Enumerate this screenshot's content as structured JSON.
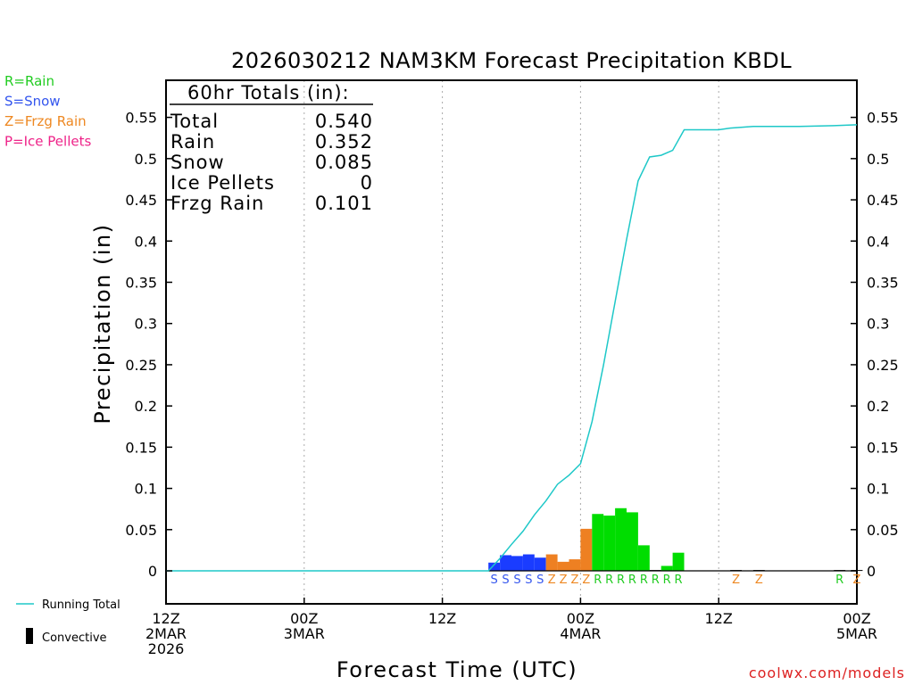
{
  "chart_data": {
    "type": "bar",
    "title": "2026030212 NAM3KM Forecast Precipitation KBDL",
    "xlabel": "Forecast Time (UTC)",
    "ylabel": "Precipitation (in)",
    "ylim": [
      -0.04,
      0.595
    ],
    "xlim_hours": [
      0,
      60
    ],
    "yticks": [
      "0",
      "0.05",
      "0.1",
      "0.15",
      "0.2",
      "0.25",
      "0.3",
      "0.35",
      "0.4",
      "0.45",
      "0.5",
      "0.55"
    ],
    "ytick_values": [
      0,
      0.05,
      0.1,
      0.15,
      0.2,
      0.25,
      0.3,
      0.35,
      0.4,
      0.45,
      0.5,
      0.55
    ],
    "xticks": [
      {
        "hour": 0,
        "lines": [
          "12Z",
          "2MAR",
          "2026"
        ]
      },
      {
        "hour": 12,
        "lines": [
          "00Z",
          "3MAR"
        ]
      },
      {
        "hour": 24,
        "lines": [
          "12Z"
        ]
      },
      {
        "hour": 36,
        "lines": [
          "00Z",
          "4MAR"
        ]
      },
      {
        "hour": 48,
        "lines": [
          "12Z"
        ]
      },
      {
        "hour": 60,
        "lines": [
          "00Z",
          "5MAR"
        ]
      }
    ],
    "legend_types": [
      {
        "label": "R=Rain",
        "color": "#22cc22"
      },
      {
        "label": "S=Snow",
        "color": "#3355ee"
      },
      {
        "label": "Z=Frzg Rain",
        "color": "#ee8822"
      },
      {
        "label": "P=Ice Pellets",
        "color": "#ee2288"
      }
    ],
    "legend_lines": [
      {
        "label": "Running Total",
        "color": "#1ec8c8"
      },
      {
        "label": "Convective",
        "color": "#000000"
      }
    ],
    "totals": {
      "header": "60hr Totals (in):",
      "rows": [
        {
          "label": "Total",
          "value": "0.540"
        },
        {
          "label": "Rain",
          "value": "0.352"
        },
        {
          "label": "Snow",
          "value": "0.085"
        },
        {
          "label": "Ice Pellets",
          "value": "0"
        },
        {
          "label": "Frzg Rain",
          "value": "0.101"
        }
      ]
    },
    "bars": [
      {
        "hour": 28.5,
        "value": 0.01,
        "type": "S"
      },
      {
        "hour": 29.5,
        "value": 0.019,
        "type": "S"
      },
      {
        "hour": 30.5,
        "value": 0.018,
        "type": "S"
      },
      {
        "hour": 31.5,
        "value": 0.02,
        "type": "S"
      },
      {
        "hour": 32.5,
        "value": 0.016,
        "type": "S"
      },
      {
        "hour": 33.5,
        "value": 0.02,
        "type": "Z"
      },
      {
        "hour": 34.5,
        "value": 0.011,
        "type": "Z"
      },
      {
        "hour": 35.5,
        "value": 0.014,
        "type": "Z"
      },
      {
        "hour": 36.5,
        "value": 0.051,
        "type": "Z"
      },
      {
        "hour": 37.5,
        "value": 0.069,
        "type": "R"
      },
      {
        "hour": 38.5,
        "value": 0.067,
        "type": "R"
      },
      {
        "hour": 39.5,
        "value": 0.076,
        "type": "R"
      },
      {
        "hour": 40.5,
        "value": 0.071,
        "type": "R"
      },
      {
        "hour": 41.5,
        "value": 0.031,
        "type": "R"
      },
      {
        "hour": 42.5,
        "value": 0.001,
        "type": "R"
      },
      {
        "hour": 43.5,
        "value": 0.006,
        "type": "R"
      },
      {
        "hour": 44.5,
        "value": 0.022,
        "type": "R"
      },
      {
        "hour": 49.5,
        "value": 0.001,
        "type": "Z"
      },
      {
        "hour": 51.5,
        "value": 0.001,
        "type": "Z"
      },
      {
        "hour": 58.5,
        "value": 0.001,
        "type": "R"
      },
      {
        "hour": 60.0,
        "value": 0.001,
        "type": "Z"
      }
    ],
    "running_total": [
      [
        0,
        0
      ],
      [
        28,
        0
      ],
      [
        29,
        0.015
      ],
      [
        30,
        0.032
      ],
      [
        31,
        0.048
      ],
      [
        32,
        0.068
      ],
      [
        33,
        0.085
      ],
      [
        34,
        0.105
      ],
      [
        35,
        0.116
      ],
      [
        36,
        0.13
      ],
      [
        37,
        0.181
      ],
      [
        38,
        0.25
      ],
      [
        39,
        0.326
      ],
      [
        40,
        0.402
      ],
      [
        41,
        0.473
      ],
      [
        42,
        0.502
      ],
      [
        43,
        0.504
      ],
      [
        44,
        0.51
      ],
      [
        45,
        0.535
      ],
      [
        48,
        0.535
      ],
      [
        49,
        0.537
      ],
      [
        51,
        0.539
      ],
      [
        55,
        0.539
      ],
      [
        58,
        0.54
      ],
      [
        60,
        0.541
      ]
    ]
  },
  "credit": "coolwx.com/models"
}
